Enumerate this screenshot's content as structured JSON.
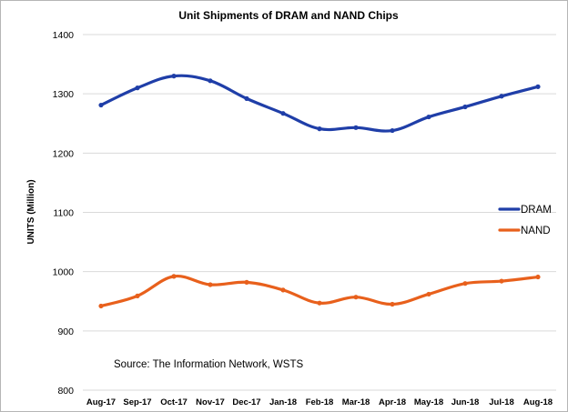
{
  "chart_data": {
    "type": "line",
    "title": "Unit Shipments of DRAM and NAND Chips",
    "ylabel": "UNITS (Million)",
    "xlabel": "",
    "ylim": [
      800,
      1400
    ],
    "yticks": [
      800,
      900,
      1000,
      1100,
      1200,
      1300,
      1400
    ],
    "categories": [
      "Aug-17",
      "Sep-17",
      "Oct-17",
      "Nov-17",
      "Dec-17",
      "Jan-18",
      "Feb-18",
      "Mar-18",
      "Apr-18",
      "May-18",
      "Jun-18",
      "Jul-18",
      "Aug-18"
    ],
    "series": [
      {
        "name": "DRAM",
        "color": "#1f3ea8",
        "values": [
          1281,
          1310,
          1330,
          1322,
          1292,
          1267,
          1241,
          1243,
          1238,
          1261,
          1278,
          1296,
          1312
        ]
      },
      {
        "name": "NAND",
        "color": "#e8601c",
        "values": [
          942,
          959,
          992,
          978,
          982,
          969,
          947,
          957,
          945,
          962,
          980,
          984,
          991
        ]
      }
    ],
    "grid": true,
    "legend_position": "right",
    "annotation": "Source: The Information Network, WSTS"
  }
}
